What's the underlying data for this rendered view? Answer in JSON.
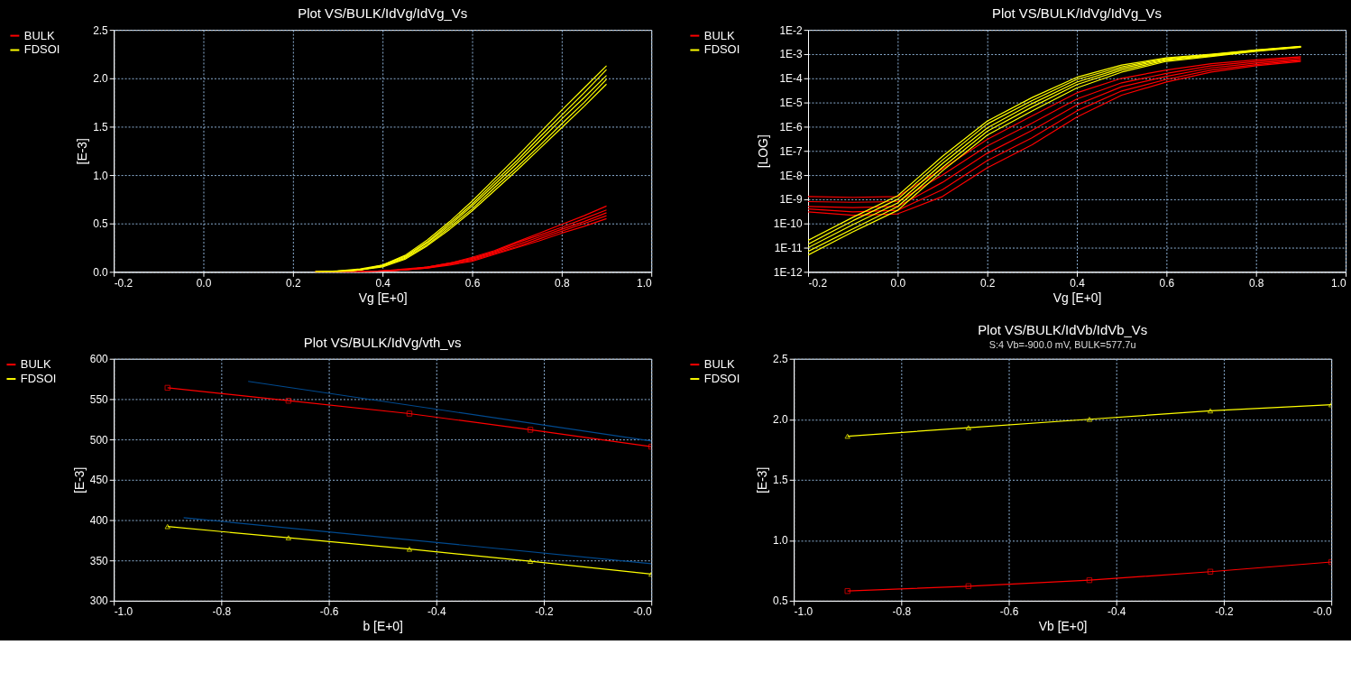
{
  "chart_data": [
    {
      "type": "line",
      "title": "Plot VS/BULK/IdVg/IdVg_Vs",
      "xlabel": "Vg  [E+0]",
      "ylabel": "[E-3]",
      "grid": true,
      "legend": "left",
      "marker": "none",
      "x": [
        0.25,
        0.3,
        0.35,
        0.4,
        0.45,
        0.5,
        0.55,
        0.6,
        0.65,
        0.7,
        0.75,
        0.8,
        0.85,
        0.9
      ],
      "xlim": [
        -0.2,
        1.0
      ],
      "xticks": [
        -0.2,
        {
          "value": 0,
          "label": "0.0"
        },
        0.2,
        0.4,
        0.6,
        0.8,
        {
          "value": 1,
          "label": "1.0"
        }
      ],
      "ylim": [
        0,
        2.5
      ],
      "yticks": [
        {
          "value": 0,
          "label": "0.0"
        },
        0.5,
        {
          "value": 1,
          "label": "1.0"
        },
        1.5,
        {
          "value": 2,
          "label": "2.0"
        },
        2.5
      ],
      "series": [
        {
          "name": "BULK",
          "color": "#ff0000",
          "values": [
            0,
            0,
            0,
            0.01,
            0.03,
            0.05,
            0.09,
            0.15,
            0.22,
            0.31,
            0.4,
            0.49,
            0.58,
            0.68
          ]
        },
        {
          "color": "#ff0000",
          "values": [
            0,
            0,
            0,
            0.01,
            0.02,
            0.05,
            0.09,
            0.14,
            0.21,
            0.3,
            0.38,
            0.46,
            0.55,
            0.64
          ]
        },
        {
          "color": "#ff0000",
          "values": [
            0,
            0,
            0,
            0.01,
            0.02,
            0.05,
            0.08,
            0.13,
            0.2,
            0.28,
            0.36,
            0.44,
            0.52,
            0.61
          ]
        },
        {
          "color": "#ff0000",
          "values": [
            0,
            0,
            0,
            0.01,
            0.02,
            0.04,
            0.08,
            0.12,
            0.19,
            0.26,
            0.34,
            0.42,
            0.5,
            0.58
          ]
        },
        {
          "color": "#ff0000",
          "values": [
            0,
            0,
            0,
            0.01,
            0.02,
            0.04,
            0.07,
            0.11,
            0.18,
            0.25,
            0.32,
            0.4,
            0.47,
            0.55
          ]
        },
        {
          "name": "FDSOI",
          "color": "#ffff00",
          "values": [
            0,
            0.01,
            0.03,
            0.07,
            0.17,
            0.33,
            0.52,
            0.73,
            0.96,
            1.19,
            1.43,
            1.67,
            1.9,
            2.13
          ]
        },
        {
          "color": "#ffff00",
          "values": [
            0,
            0.01,
            0.02,
            0.07,
            0.16,
            0.31,
            0.5,
            0.7,
            0.93,
            1.15,
            1.39,
            1.62,
            1.85,
            2.09
          ]
        },
        {
          "color": "#ffff00",
          "values": [
            0,
            0,
            0.02,
            0.06,
            0.15,
            0.3,
            0.48,
            0.68,
            0.9,
            1.12,
            1.35,
            1.58,
            1.8,
            2.03
          ]
        },
        {
          "color": "#ffff00",
          "values": [
            0,
            0,
            0.02,
            0.06,
            0.14,
            0.28,
            0.46,
            0.65,
            0.87,
            1.08,
            1.3,
            1.53,
            1.75,
            1.99
          ]
        },
        {
          "color": "#ffff00",
          "values": [
            0,
            0,
            0.02,
            0.05,
            0.13,
            0.27,
            0.44,
            0.63,
            0.84,
            1.05,
            1.27,
            1.49,
            1.71,
            1.94
          ]
        }
      ]
    },
    {
      "type": "line",
      "title": "Plot VS/BULK/IdVg/IdVg_Vs",
      "xlabel": "Vg  [E+0]",
      "ylabel": "[LOG]",
      "grid": true,
      "legend": "left",
      "marker": "none",
      "log": "y",
      "x": [
        -0.2,
        -0.1,
        0.0,
        0.1,
        0.2,
        0.3,
        0.4,
        0.5,
        0.6,
        0.7,
        0.8,
        0.9
      ],
      "xlim": [
        -0.2,
        1.0
      ],
      "xticks": [
        -0.2,
        {
          "value": 0,
          "label": "0.0"
        },
        0.2,
        0.4,
        0.6,
        0.8,
        {
          "value": 1,
          "label": "1.0"
        }
      ],
      "ylim": [
        1e-12,
        0.01
      ],
      "yticks": [
        {
          "value": 1e-12,
          "label": "1E-12"
        },
        {
          "value": 1e-11,
          "label": "1E-11"
        },
        {
          "value": 1e-10,
          "label": "1E-10"
        },
        {
          "value": 1e-09,
          "label": "1E-9"
        },
        {
          "value": 1e-08,
          "label": "1E-8"
        },
        {
          "value": 1e-07,
          "label": "1E-7"
        },
        {
          "value": 1e-06,
          "label": "1E-6"
        },
        {
          "value": 1e-05,
          "label": "1E-5"
        },
        {
          "value": 0.0001,
          "label": "1E-4"
        },
        {
          "value": 0.001,
          "label": "1E-3"
        },
        {
          "value": 0.01,
          "label": "1E-2"
        }
      ],
      "series": [
        {
          "name": "BULK",
          "color": "#ff0000",
          "values": [
            1.3e-09,
            1.2e-09,
            1.3e-09,
            1.8e-08,
            3e-07,
            2.8e-06,
            2.5e-05,
            0.0001,
            0.00022,
            0.0004,
            0.00058,
            0.00078
          ]
        },
        {
          "color": "#ff0000",
          "values": [
            8e-10,
            7.5e-10,
            8e-10,
            1e-08,
            1.6e-07,
            1.4e-06,
            1.4e-05,
            6.5e-05,
            0.00016,
            0.00033,
            0.0005,
            0.0007
          ]
        },
        {
          "color": "#ff0000",
          "values": [
            5e-10,
            4.5e-10,
            5e-10,
            5e-09,
            8e-08,
            7e-07,
            8e-06,
            4.5e-05,
            0.00012,
            0.00027,
            0.00043,
            0.0006
          ]
        },
        {
          "color": "#ff0000",
          "values": [
            4e-10,
            3e-10,
            3.5e-10,
            2.5e-09,
            4e-08,
            3.5e-07,
            4.5e-06,
            3e-05,
            9e-05,
            0.00022,
            0.00037,
            0.00055
          ]
        },
        {
          "color": "#ff0000",
          "values": [
            3e-10,
            2.2e-10,
            2.5e-10,
            1.3e-09,
            2e-08,
            1.8e-07,
            2.5e-06,
            2e-05,
            7e-05,
            0.00018,
            0.00033,
            0.0005
          ]
        },
        {
          "name": "FDSOI",
          "color": "#ffff00",
          "values": [
            2e-11,
            1.8e-10,
            1.4e-09,
            6e-08,
            1.7e-06,
            1.6e-05,
            0.00011,
            0.00035,
            0.0007,
            0.001,
            0.0015,
            0.0021
          ]
        },
        {
          "color": "#ffff00",
          "values": [
            1.4e-11,
            1.3e-10,
            1e-09,
            4.2e-08,
            1.3e-06,
            1.2e-05,
            9e-05,
            0.0003,
            0.00065,
            0.00095,
            0.00145,
            0.00205
          ]
        },
        {
          "color": "#ffff00",
          "values": [
            1e-11,
            9e-11,
            7e-10,
            3e-08,
            9e-07,
            9e-06,
            7e-05,
            0.00026,
            0.0006,
            0.0009,
            0.0014,
            0.002
          ]
        },
        {
          "color": "#ffff00",
          "values": [
            7e-12,
            6e-11,
            5e-10,
            2.1e-08,
            6.5e-07,
            6.5e-06,
            5.5e-05,
            0.00022,
            0.00055,
            0.00085,
            0.00135,
            0.00195
          ]
        },
        {
          "color": "#ffff00",
          "values": [
            5e-12,
            4.5e-11,
            3.5e-10,
            1.5e-08,
            4.5e-07,
            4.5e-06,
            4e-05,
            0.00018,
            0.0005,
            0.0008,
            0.0013,
            0.0019
          ]
        }
      ]
    },
    {
      "type": "line",
      "title": "Plot VS/BULK/IdVg/vth_vs",
      "xlabel": "b  [E+0]",
      "ylabel": "[E-3]",
      "grid": true,
      "legend": "left",
      "x": [
        -0.9,
        -0.675,
        -0.45,
        -0.225,
        0.0
      ],
      "xlim": [
        -1.0,
        0.0
      ],
      "xticks": [
        {
          "value": -1,
          "label": "-1.0"
        },
        -0.8,
        -0.6,
        -0.4,
        -0.2,
        {
          "value": 0,
          "label": "-0.0"
        }
      ],
      "ylim": [
        300,
        600
      ],
      "yticks": [
        300,
        350,
        400,
        450,
        500,
        550,
        600
      ],
      "series": [
        {
          "name": "BULK",
          "color": "#ff0000",
          "marker": "square",
          "values": [
            564,
            548,
            532,
            512,
            491
          ]
        },
        {
          "name": "FDSOI",
          "color": "#ffff00",
          "marker": "triangle",
          "values": [
            392,
            378,
            364,
            349,
            333
          ]
        },
        {
          "color": "#004a8f",
          "marker": "none",
          "x": [
            -0.75,
            0.0
          ],
          "values": [
            572,
            498
          ]
        },
        {
          "color": "#004a8f",
          "marker": "none",
          "x": [
            -0.87,
            0.0
          ],
          "values": [
            403,
            346
          ]
        }
      ]
    },
    {
      "type": "line",
      "title": "Plot VS/BULK/IdVb/IdVb_Vs",
      "subtitle": "S:4 Vb=-900.0  mV, BULK=577.7u",
      "xlabel": "Vb  [E+0]",
      "ylabel": "[E-3]",
      "grid": true,
      "legend": "left",
      "x": [
        -0.9,
        -0.675,
        -0.45,
        -0.225,
        0.0
      ],
      "xlim": [
        -1.0,
        0.0
      ],
      "xticks": [
        {
          "value": -1,
          "label": "-1.0"
        },
        -0.8,
        -0.6,
        -0.4,
        -0.2,
        {
          "value": 0,
          "label": "-0.0"
        }
      ],
      "ylim": [
        0.5,
        2.5
      ],
      "yticks": [
        0.5,
        {
          "value": 1,
          "label": "1.0"
        },
        1.5,
        {
          "value": 2,
          "label": "2.0"
        },
        2.5
      ],
      "series": [
        {
          "name": "BULK",
          "color": "#ff0000",
          "marker": "square",
          "values": [
            0.58,
            0.62,
            0.67,
            0.74,
            0.82
          ]
        },
        {
          "name": "FDSOI",
          "color": "#ffff00",
          "marker": "triangle",
          "values": [
            1.86,
            1.93,
            2.0,
            2.07,
            2.12
          ]
        }
      ]
    }
  ]
}
